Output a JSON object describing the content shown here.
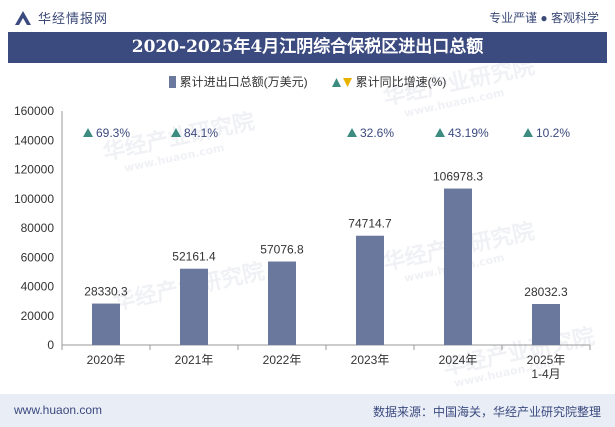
{
  "header": {
    "brand": "华经情报网",
    "tagline": "专业严谨 ● 客观科学"
  },
  "title": "2020-2025年4月江阴综合保税区进出口总额",
  "legend": {
    "bar_label": "累计进出口总额(万美元)",
    "growth_label": "累计同比增速(%)"
  },
  "footer": {
    "website": "www.huaon.com",
    "source": "数据来源：中国海关，华经产业研究院整理"
  },
  "watermark": {
    "cn": "华经产业研究院",
    "url": "www.huaon.com"
  },
  "colors": {
    "bar": "#6a789e",
    "up": "#3c8c80",
    "down": "#e8b200",
    "title_bg": "#3b4a7f"
  },
  "chart_data": {
    "type": "bar",
    "categories": [
      "2020年",
      "2021年",
      "2022年",
      "2023年",
      "2024年",
      "2025年\n1-4月"
    ],
    "series": [
      {
        "name": "累计进出口总额(万美元)",
        "values": [
          28330.3,
          52161.4,
          57076.8,
          74714.7,
          106978.3,
          28032.3
        ],
        "labels": [
          "28330.3",
          "52161.4",
          "57076.8",
          "74714.7",
          "106978.3",
          "28032.3"
        ]
      },
      {
        "name": "累计同比增速(%)",
        "values": [
          69.3,
          84.1,
          null,
          32.6,
          43.19,
          10.2
        ],
        "labels": [
          "69.3%",
          "84.1%",
          "",
          "32.6%",
          "43.19%",
          "10.2%"
        ]
      }
    ],
    "ylim": [
      0,
      160000
    ],
    "yticks": [
      "0",
      "20000",
      "40000",
      "60000",
      "80000",
      "100000",
      "120000",
      "140000",
      "160000"
    ],
    "grid": false,
    "legend_position": "top"
  }
}
